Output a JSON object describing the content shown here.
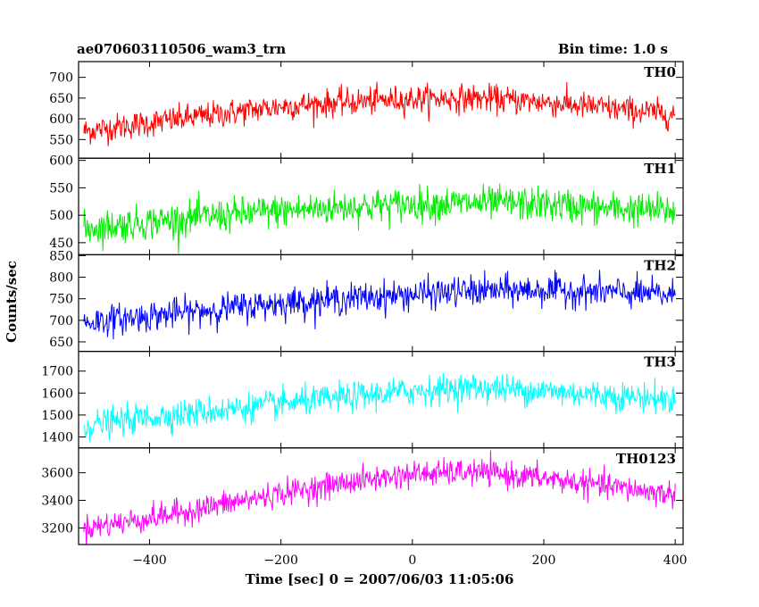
{
  "header": {
    "title": "ae070603110506_wam3_trn",
    "bin_time": "Bin time: 1.0 s"
  },
  "chart_data": {
    "type": "line",
    "title": "ae070603110506_wam3_trn",
    "xlabel": "Time [sec] 0 = 2007/06/03 11:05:06",
    "ylabel": "Counts/sec",
    "xlim": [
      -508,
      412
    ],
    "x_ticks": [
      -400,
      -200,
      0,
      200,
      400
    ],
    "x_tick_labels": [
      "−400",
      "−200",
      "0",
      "200",
      "400"
    ],
    "x_start": -500,
    "x_end": 400,
    "panels": [
      {
        "name": "TH0",
        "color": "#ff0000",
        "ylim": [
          505,
          738
        ],
        "y_ticks": [
          550,
          600,
          650,
          700
        ],
        "trend_x": [
          -500,
          -400,
          -300,
          -200,
          -100,
          0,
          100,
          200,
          300,
          400
        ],
        "trend_y": [
          570,
          590,
          610,
          630,
          640,
          648,
          650,
          640,
          625,
          610
        ],
        "noise": 30
      },
      {
        "name": "TH1",
        "color": "#00ee00",
        "ylim": [
          428,
          604
        ],
        "y_ticks": [
          450,
          500,
          550,
          600
        ],
        "trend_x": [
          -500,
          -400,
          -300,
          -200,
          -100,
          0,
          100,
          200,
          300,
          400
        ],
        "trend_y": [
          475,
          488,
          498,
          508,
          515,
          520,
          522,
          520,
          512,
          508
        ],
        "noise": 28
      },
      {
        "name": "TH2",
        "color": "#0000ff",
        "ylim": [
          628,
          852
        ],
        "y_ticks": [
          650,
          700,
          750,
          800,
          850
        ],
        "trend_x": [
          -500,
          -400,
          -300,
          -200,
          -100,
          0,
          100,
          200,
          300,
          400
        ],
        "trend_y": [
          695,
          710,
          725,
          740,
          750,
          760,
          768,
          770,
          765,
          758
        ],
        "noise": 32
      },
      {
        "name": "TH3",
        "color": "#00ffff",
        "ylim": [
          1350,
          1790
        ],
        "y_ticks": [
          1400,
          1500,
          1600,
          1700
        ],
        "trend_x": [
          -500,
          -400,
          -300,
          -200,
          -100,
          0,
          100,
          200,
          300,
          400
        ],
        "trend_y": [
          1450,
          1490,
          1520,
          1550,
          1580,
          1610,
          1625,
          1610,
          1590,
          1570
        ],
        "noise": 60
      },
      {
        "name": "TH0123",
        "color": "#ff00ff",
        "ylim": [
          3080,
          3780
        ],
        "y_ticks": [
          3200,
          3400,
          3600
        ],
        "trend_x": [
          -500,
          -400,
          -300,
          -200,
          -100,
          0,
          100,
          200,
          300,
          400
        ],
        "trend_y": [
          3200,
          3270,
          3360,
          3450,
          3530,
          3590,
          3605,
          3560,
          3500,
          3440
        ],
        "noise": 85
      }
    ]
  }
}
